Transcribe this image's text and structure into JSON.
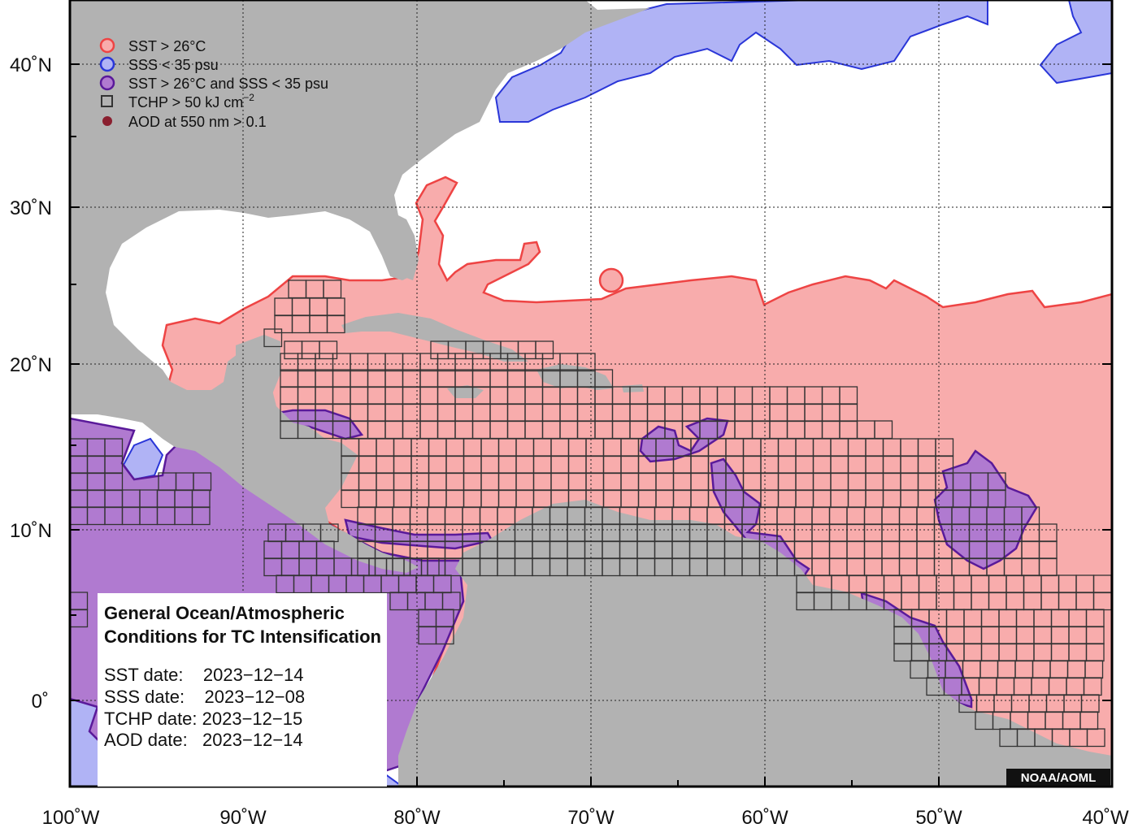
{
  "colors": {
    "land": "#b2b2b2",
    "ocean": "#ffffff",
    "sst": "#f8acac",
    "sst_edge": "#ee4444",
    "sss": "#b0b3f5",
    "sss_edge": "#2a36d8",
    "both": "#b07ad0",
    "both_edge": "#5a1a9a",
    "grid_box": "#333333",
    "aod": "#8a1f2f"
  },
  "legend": [
    {
      "icon": "sst-circle-icon",
      "label": "SST > 26°C"
    },
    {
      "icon": "sss-circle-icon",
      "label": "SSS < 35 psu"
    },
    {
      "icon": "sst-sss-circle-icon",
      "label": "SST > 26°C and SSS < 35 psu"
    },
    {
      "icon": "tchp-square-icon",
      "label": "TCHP > 50 kJ cm",
      "sup": "−2"
    },
    {
      "icon": "aod-dot-icon",
      "label": "AOD at 550 nm > 0.1"
    }
  ],
  "info": {
    "title_line1": "General Ocean/Atmospheric",
    "title_line2": "Conditions for TC Intensification",
    "sst_date": "SST date:    2023−12−14",
    "sss_date": "SSS date:    2023−12−08",
    "tchp_date": "TCHP date: 2023−12−15",
    "aod_date": "AOD date:   2023−12−14"
  },
  "credit": "NOAA/AOML",
  "axes": {
    "x_ticks": [
      "100˚W",
      "90˚W",
      "80˚W",
      "70˚W",
      "60˚W",
      "50˚W",
      "40˚W"
    ],
    "y_ticks": [
      "40˚N",
      "30˚N",
      "20˚N",
      "10˚N",
      "0˚"
    ],
    "lon_range": [
      -100,
      -40
    ],
    "lat_range": [
      -5,
      45
    ]
  }
}
